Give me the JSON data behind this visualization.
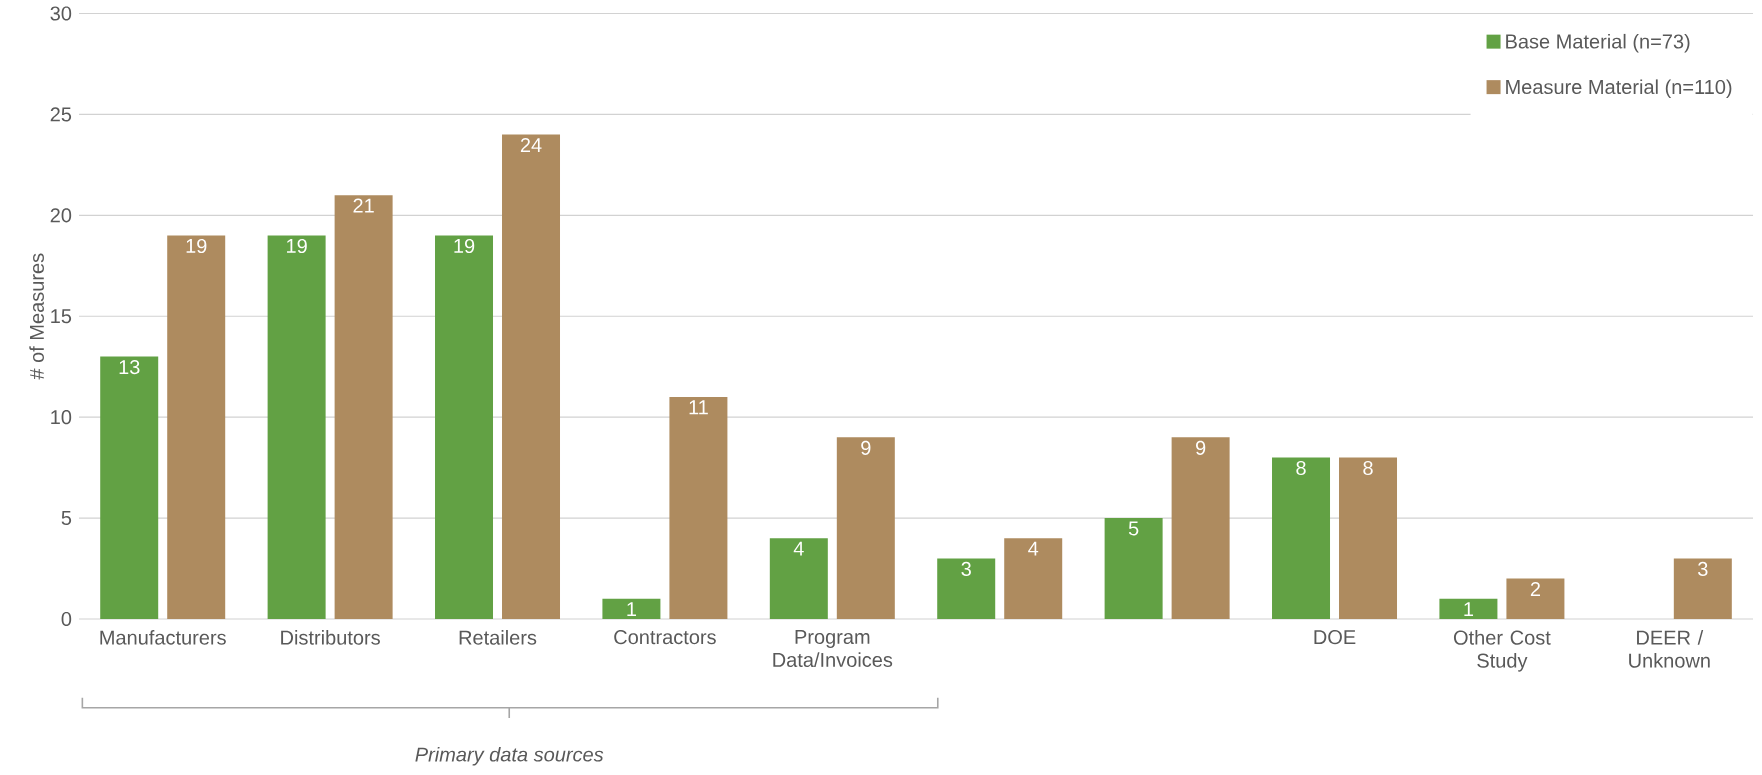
{
  "chart_data": {
    "type": "bar",
    "ylabel": "# of Measures",
    "categories": [
      "Manufacturers",
      "Distributors",
      "Retailers",
      "Contractors",
      "Program Data/Invoices",
      null,
      null,
      "DOE",
      "Other Cost Study",
      "DEER / Unknown"
    ],
    "series": [
      {
        "name": "Base Material (n=73)",
        "color": "#62a144",
        "values": [
          13,
          19,
          19,
          1,
          4,
          3,
          5,
          8,
          1,
          null
        ]
      },
      {
        "name": "Measure Material (n=110)",
        "color": "#ae8b5f",
        "values": [
          19,
          21,
          24,
          11,
          9,
          4,
          9,
          8,
          2,
          3
        ]
      }
    ],
    "ylim": [
      0,
      30
    ],
    "yticks": [
      0,
      5,
      10,
      15,
      20,
      25,
      30
    ],
    "grid": "y",
    "legend": "top right",
    "data_labels": true,
    "annotations": [
      "Primary data sources"
    ]
  }
}
